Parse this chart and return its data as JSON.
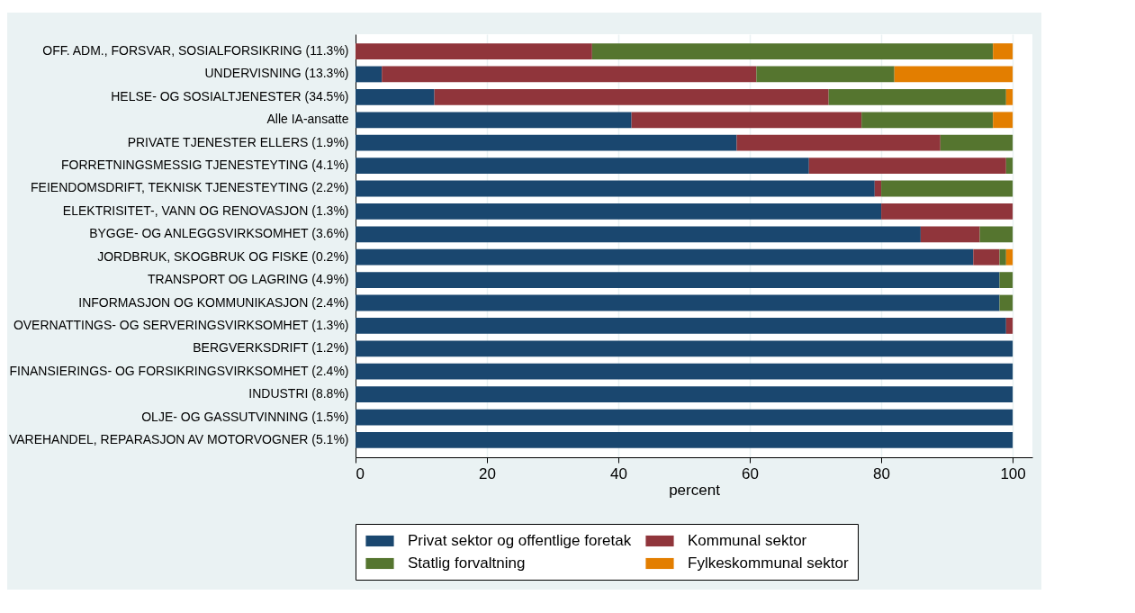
{
  "chart_data": {
    "type": "bar",
    "orientation": "horizontal",
    "stacked": true,
    "xlabel": "percent",
    "categories": [
      "OFF. ADM., FORSVAR, SOSIALFORSIKRING (11.3%)",
      "UNDERVISNING (13.3%)",
      "HELSE- OG SOSIALTJENESTER (34.5%)",
      "Alle IA-ansatte",
      "PRIVATE TJENESTER ELLERS (1.9%)",
      "FORRETNINGSMESSIG TJENESTEYTING (4.1%)",
      "FEIENDOMSDRIFT, TEKNISK TJENESTEYTING (2.2%)",
      "ELEKTRISITET-, VANN OG RENOVASJON (1.3%)",
      "BYGGE- OG ANLEGGSVIRKSOMHET (3.6%)",
      "JORDBRUK, SKOGBRUK OG FISKE (0.2%)",
      "TRANSPORT OG LAGRING (4.9%)",
      "INFORMASJON OG KOMMUNIKASJON (2.4%)",
      "OVERNATTINGS- OG SERVERINGSVIRKSOMHET (1.3%)",
      "BERGVERKSDRIFT (1.2%)",
      "FINANSIERINGS- OG FORSIKRINGSVIRKSOMHET (2.4%)",
      "INDUSTRI (8.8%)",
      "OLJE- OG GASSUTVINNING (1.5%)",
      "VAREHANDEL, REPARASJON AV MOTORVOGNER (5.1%)"
    ],
    "series": [
      {
        "name": "Privat sektor og offentlige foretak",
        "color": "#1a476f",
        "values": [
          null,
          4,
          12,
          42,
          58,
          69,
          79,
          80,
          86,
          94,
          98,
          98,
          99,
          100,
          100,
          100,
          100,
          100
        ]
      },
      {
        "name": "Kommunal sektor",
        "color": "#90353b",
        "values": [
          36,
          57,
          60,
          35,
          31,
          30,
          1,
          20,
          9,
          4,
          null,
          null,
          1,
          null,
          null,
          null,
          null,
          null
        ]
      },
      {
        "name": "Statlig forvaltning",
        "color": "#55752f",
        "values": [
          61,
          21,
          27,
          20,
          11,
          1,
          20,
          null,
          5,
          1,
          2,
          2,
          null,
          null,
          null,
          null,
          null,
          null
        ]
      },
      {
        "name": "Fylkeskommunal sektor",
        "color": "#e37e00",
        "values": [
          3,
          18,
          1,
          3,
          null,
          null,
          null,
          null,
          null,
          1,
          null,
          null,
          null,
          null,
          null,
          null,
          null,
          null
        ]
      }
    ],
    "xlim": [
      0,
      103
    ],
    "xticks": [
      0,
      20,
      40,
      60,
      80,
      100
    ],
    "grid": "x",
    "legend": "bottom"
  }
}
